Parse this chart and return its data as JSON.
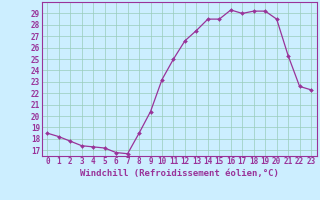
{
  "hours": [
    0,
    1,
    2,
    3,
    4,
    5,
    6,
    7,
    8,
    9,
    10,
    11,
    12,
    13,
    14,
    15,
    16,
    17,
    18,
    19,
    20,
    21,
    22,
    23
  ],
  "values": [
    18.5,
    18.2,
    17.8,
    17.4,
    17.3,
    17.2,
    16.8,
    16.7,
    18.5,
    20.4,
    23.2,
    25.0,
    26.6,
    27.5,
    28.5,
    28.5,
    29.3,
    29.0,
    29.2,
    29.2,
    28.5,
    25.3,
    22.6,
    22.3
  ],
  "line_color": "#993399",
  "marker": "D",
  "markersize": 2.0,
  "linewidth": 0.9,
  "bg_color": "#cceeff",
  "grid_color": "#99ccbb",
  "xlabel": "Windchill (Refroidissement éolien,°C)",
  "xlabel_fontsize": 6.5,
  "ytick_labels": [
    "17",
    "18",
    "19",
    "20",
    "21",
    "22",
    "23",
    "24",
    "25",
    "26",
    "27",
    "28",
    "29"
  ],
  "ylim": [
    16.5,
    30.0
  ],
  "xlim": [
    -0.5,
    23.5
  ],
  "yticks": [
    17,
    18,
    19,
    20,
    21,
    22,
    23,
    24,
    25,
    26,
    27,
    28,
    29
  ],
  "xtick_labels": [
    "0",
    "1",
    "2",
    "3",
    "4",
    "5",
    "6",
    "7",
    "8",
    "9",
    "10",
    "11",
    "12",
    "13",
    "14",
    "15",
    "16",
    "17",
    "18",
    "19",
    "20",
    "21",
    "22",
    "23"
  ],
  "tick_fontsize": 5.5,
  "spine_color": "#993399"
}
